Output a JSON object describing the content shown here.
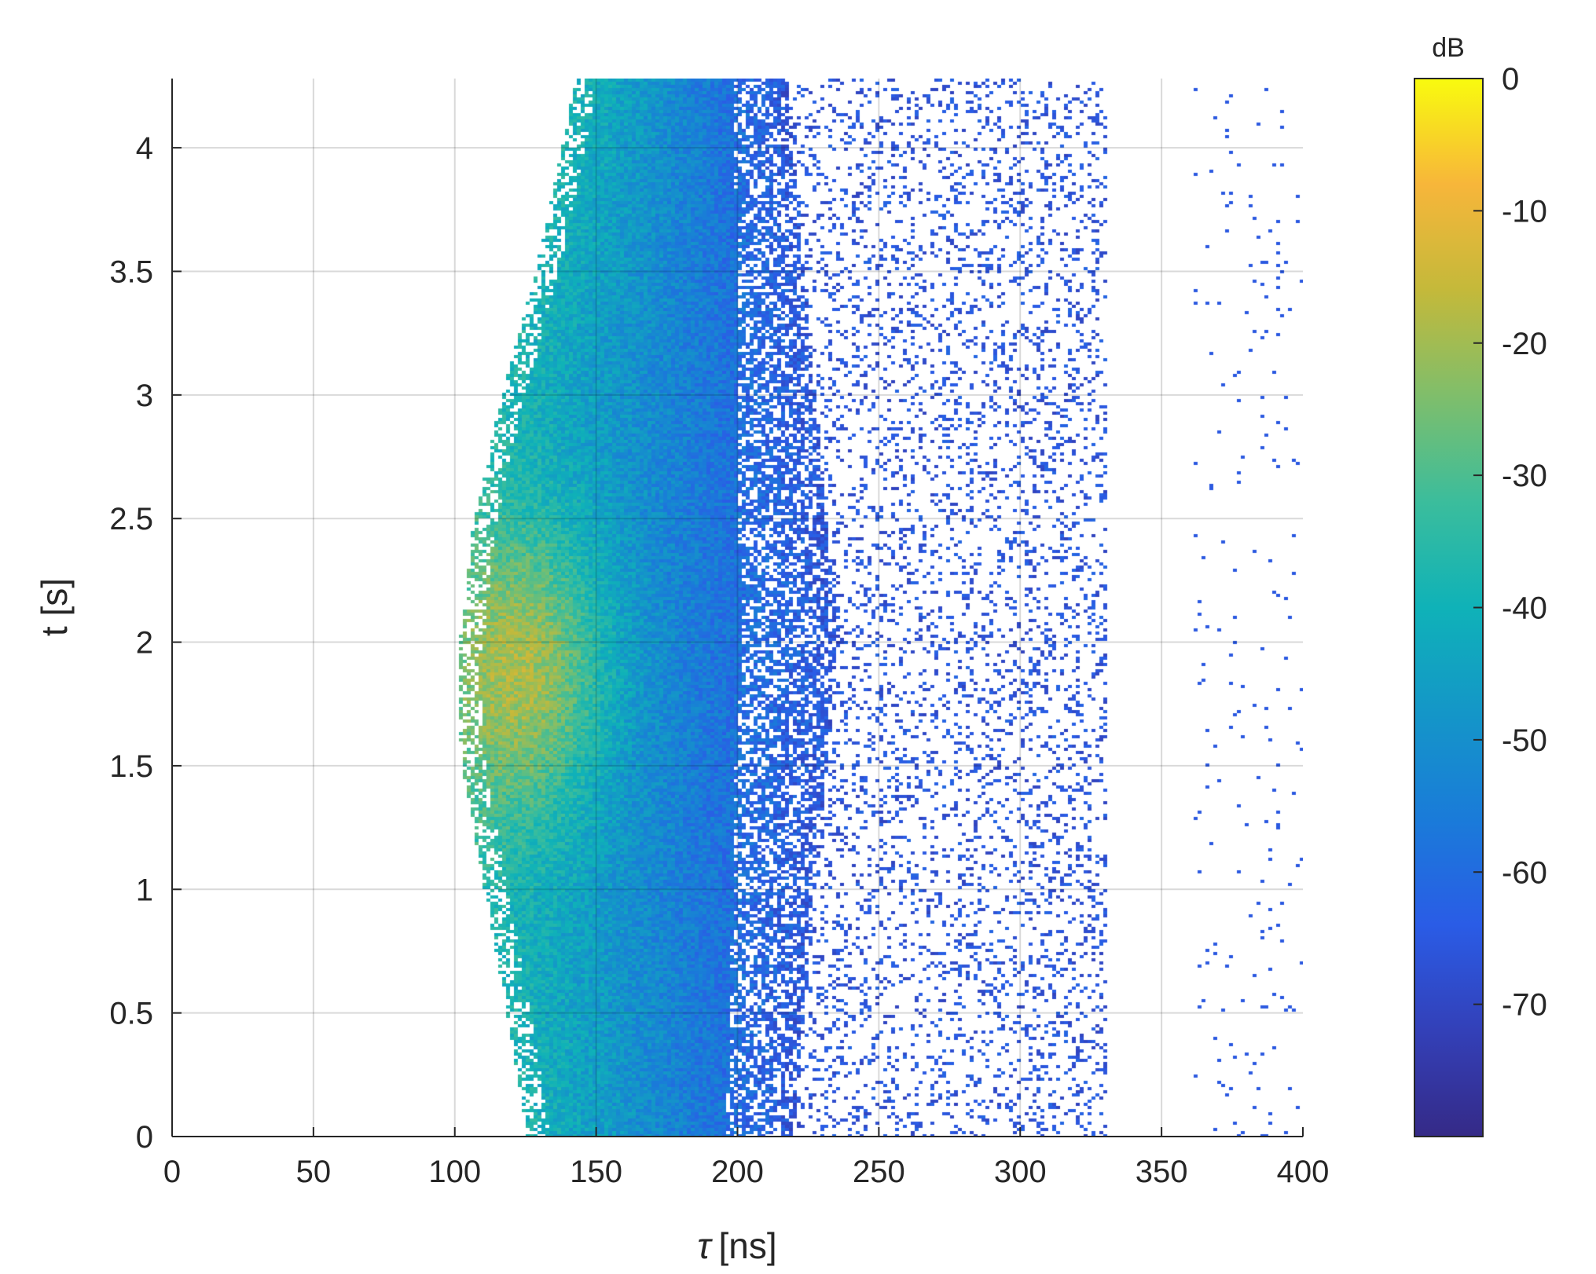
{
  "chart_data": {
    "type": "heatmap",
    "xlabel": "[ns]",
    "xlabel_symbol": "τ",
    "ylabel": "t [s]",
    "xlim": [
      0,
      400
    ],
    "ylim": [
      0,
      4.28
    ],
    "x_ticks": [
      0,
      50,
      100,
      150,
      200,
      250,
      300,
      350,
      400
    ],
    "x_tick_labels": [
      "0",
      "50",
      "100",
      "150",
      "200",
      "250",
      "300",
      "350",
      "400"
    ],
    "y_ticks": [
      0,
      0.5,
      1,
      1.5,
      2,
      2.5,
      3,
      3.5,
      4
    ],
    "y_tick_labels": [
      "0",
      "0.5",
      "1",
      "1.5",
      "2",
      "2.5",
      "3",
      "3.5",
      "4"
    ],
    "grid": true,
    "colormap": "parula",
    "colorbar": {
      "title": "dB",
      "range": [
        -80,
        0
      ],
      "ticks": [
        0,
        -10,
        -20,
        -30,
        -40,
        -50,
        -60,
        -70
      ],
      "tick_labels": [
        "0",
        "-10",
        "-20",
        "-30",
        "-40",
        "-50",
        "-60",
        "-70"
      ],
      "placement": "right"
    },
    "peak": {
      "tau_ns": 125,
      "t_s": 1.88,
      "value_db": -12
    },
    "components": [
      {
        "name_hint": "main cluster",
        "tau_inner_at_t": [
          [
            0,
            125
          ],
          [
            0.5,
            118
          ],
          [
            1,
            110
          ],
          [
            1.5,
            102
          ],
          [
            1.88,
            100
          ],
          [
            2.5,
            106
          ],
          [
            3,
            116
          ],
          [
            3.5,
            128
          ],
          [
            4.28,
            142
          ]
        ],
        "tau_outer_ns": 235,
        "level_db": [
          -25,
          -60
        ]
      },
      {
        "name_hint": "weak paths",
        "tau_ns": [
          245,
          260,
          270,
          285,
          300,
          320,
          390
        ],
        "level_db": -68
      }
    ],
    "missing_value_color": "#ffffff"
  }
}
